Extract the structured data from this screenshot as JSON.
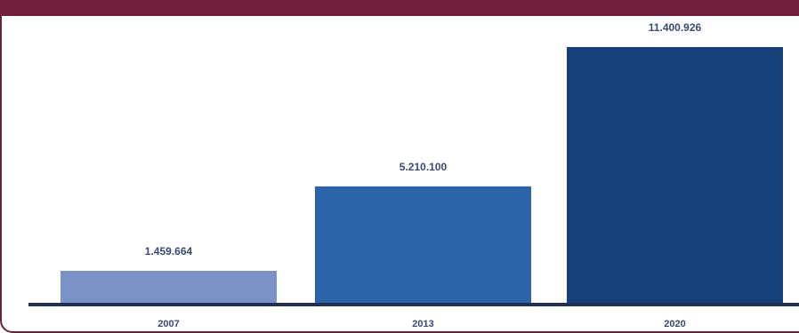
{
  "chart_data": {
    "type": "bar",
    "title": "",
    "xlabel": "",
    "ylabel": "",
    "categories": [
      "2007",
      "2013",
      "2020"
    ],
    "values": [
      1459664,
      5210100,
      11400926
    ],
    "value_labels": [
      "1.459.664",
      "5.210.100",
      "11.400.926"
    ],
    "ylim": [
      0,
      11400926
    ],
    "grid": false,
    "legend": "none",
    "colors": [
      "#7b92c6",
      "#2b64a8",
      "#173f7a"
    ],
    "axis_color": "#1f2f55"
  }
}
